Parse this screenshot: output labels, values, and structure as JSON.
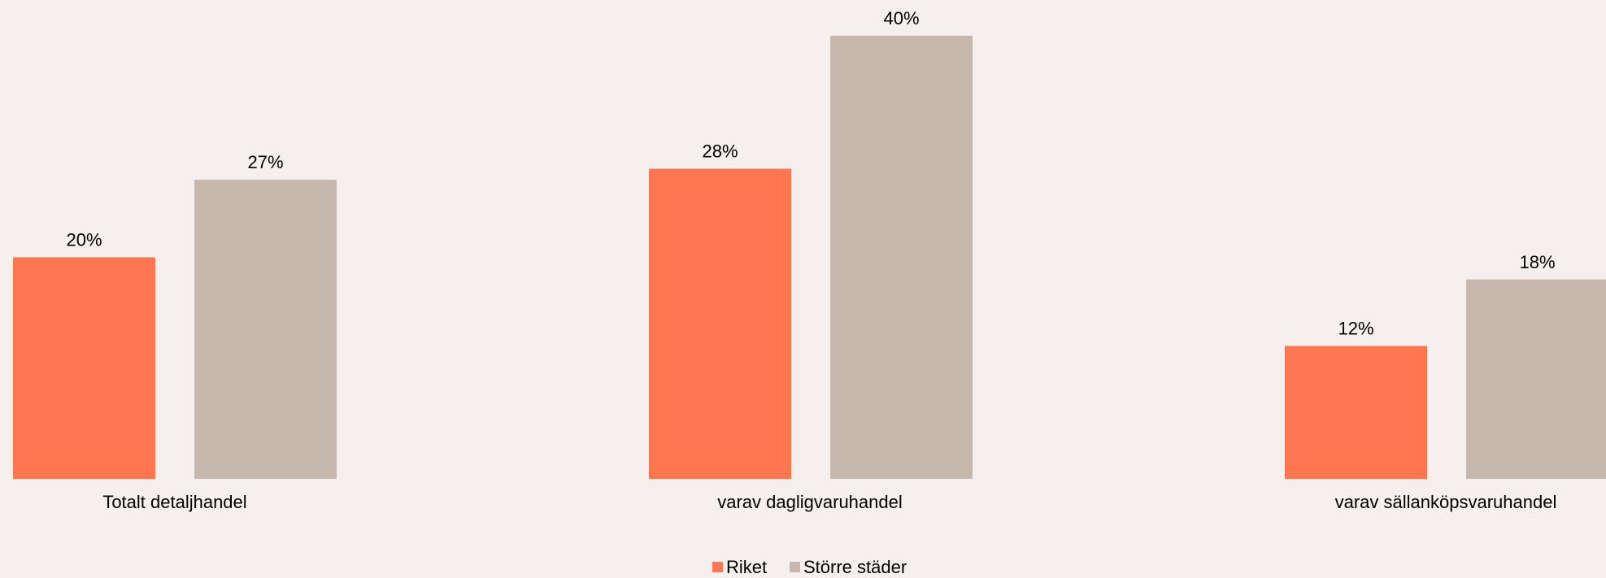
{
  "chart_data": {
    "type": "bar",
    "title": "",
    "xlabel": "",
    "ylabel": "",
    "ylim": [
      0,
      40
    ],
    "grid": false,
    "legend_position": "bottom-center",
    "categories": [
      "Totalt detaljhandel",
      "varav dagligvaruhandel",
      "varav sällanköpsvaruhandel"
    ],
    "series": [
      {
        "name": "Riket",
        "color": "#ff7650",
        "values": [
          20,
          28,
          12
        ],
        "labels": [
          "20%",
          "28%",
          "12%"
        ]
      },
      {
        "name": "Större städer",
        "color": "#c7b8ae",
        "values": [
          27,
          40,
          18
        ],
        "labels": [
          "27%",
          "40%",
          "18%"
        ]
      }
    ]
  },
  "colors": {
    "background": "#f5f0ed",
    "text": "#000000"
  }
}
